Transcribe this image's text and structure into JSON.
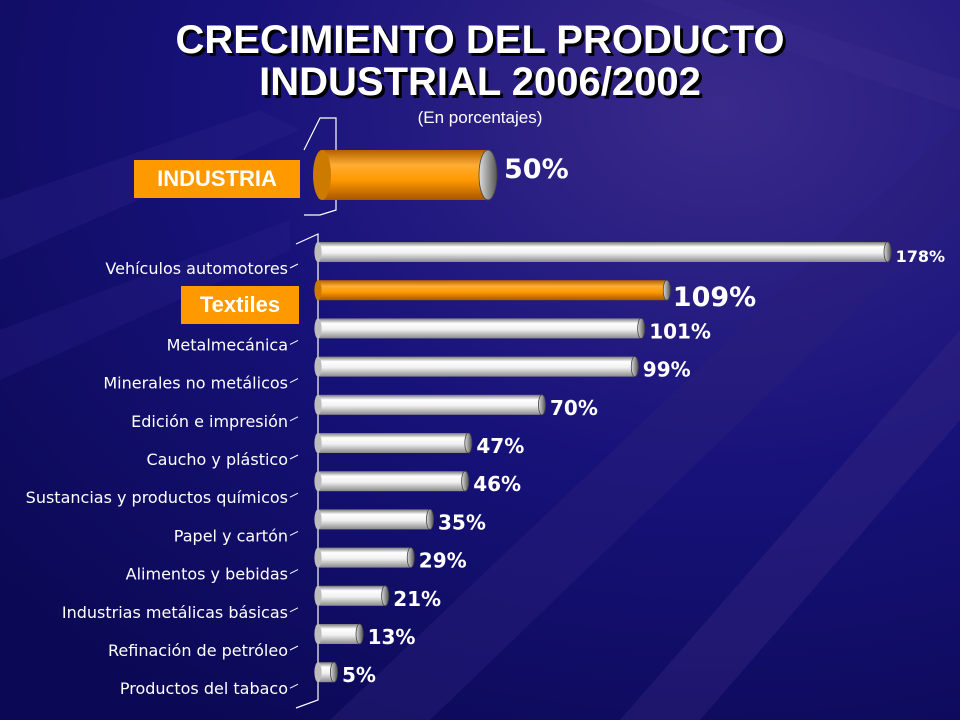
{
  "header": {
    "title_line1": "CRECIMIENTO DEL PRODUCTO",
    "title_line2": "INDUSTRIAL 2006/2002",
    "subtitle": "(En porcentajes)"
  },
  "badges": {
    "industria": "INDUSTRIA",
    "textiles": "Textiles"
  },
  "colors": {
    "background": "#0d0a5c",
    "highlight": "#ff9900",
    "bar": "#e6e6e6"
  },
  "chart_data": [
    {
      "type": "bar",
      "orientation": "horizontal",
      "categories": [
        "INDUSTRIA"
      ],
      "values": [
        50
      ],
      "value_labels": [
        "50%"
      ],
      "unit": "%"
    },
    {
      "type": "bar",
      "orientation": "horizontal",
      "categories": [
        "Vehículos automotores",
        "Textiles",
        "Metalmecánica",
        "Minerales no metálicos",
        "Edición e impresión",
        "Caucho y plástico",
        "Sustancias y productos químicos",
        "Papel y cartón",
        "Alimentos y bebidas",
        "Industrias metálicas básicas",
        "Refinación de petróleo",
        "Productos del tabaco"
      ],
      "values": [
        178,
        109,
        101,
        99,
        70,
        47,
        46,
        35,
        29,
        21,
        13,
        5
      ],
      "value_labels": [
        "178%",
        "109%",
        "101%",
        "99%",
        "70%",
        "47%",
        "46%",
        "35%",
        "29%",
        "21%",
        "13%",
        "5%"
      ],
      "highlight": [
        "Textiles"
      ],
      "unit": "%",
      "grid": false,
      "legend": "none"
    }
  ]
}
